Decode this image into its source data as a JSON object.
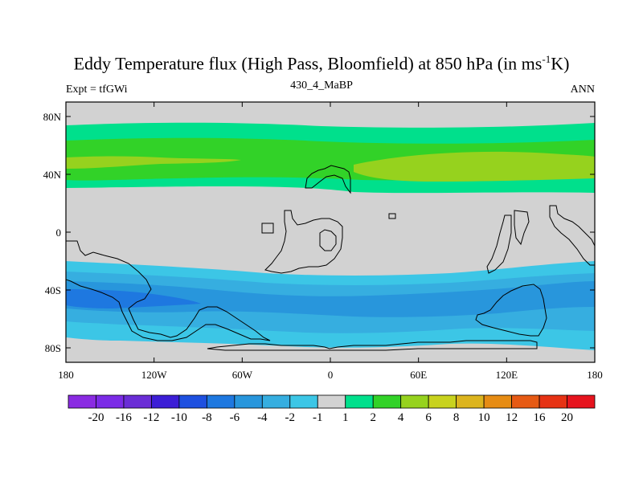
{
  "title": {
    "main": "Eddy Temperature flux (High Pass, Bloomfield) at 850 hPa (in ms",
    "sup": "-1",
    "end": "K)"
  },
  "subtitle": {
    "left": "Expt = tfGWi",
    "center": "430_4_MaBP",
    "right": "ANN"
  },
  "axes": {
    "y_labels": [
      "80N",
      "40N",
      "0",
      "40S",
      "80S"
    ],
    "x_labels": [
      "180",
      "120W",
      "60W",
      "0",
      "60E",
      "120E",
      "180"
    ]
  },
  "colorbar": {
    "labels": [
      "-20",
      "-16",
      "-12",
      "-10",
      "-8",
      "-6",
      "-4",
      "-2",
      "-1",
      "1",
      "2",
      "4",
      "6",
      "8",
      "10",
      "12",
      "16",
      "20"
    ],
    "colors": [
      "#8a2be2",
      "#7b2be6",
      "#6a2dd6",
      "#3c1ed6",
      "#1e50e0",
      "#1e78e0",
      "#2896dc",
      "#36aee0",
      "#3cc6e6",
      "#d2d2d2",
      "#00e08c",
      "#32d228",
      "#96d21e",
      "#c8d21e",
      "#dcb41e",
      "#e68c14",
      "#e65a14",
      "#e63214",
      "#e6141e"
    ]
  },
  "map": {
    "background_color": "#d2d2d2",
    "lon_range": [
      -180,
      180
    ],
    "lat_range": [
      -90,
      90
    ]
  }
}
